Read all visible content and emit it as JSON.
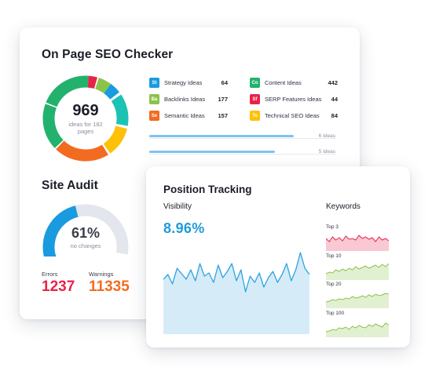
{
  "seo_checker": {
    "title": "On Page SEO Checker",
    "total_ideas": "969",
    "total_sub": "ideas for 182 pages",
    "donut_colors": [
      "#23b26d",
      "#e8234a",
      "#8bc34a",
      "#1a9be0",
      "#1cc2b3",
      "#ffc107",
      "#f26b21",
      "#23b26d"
    ],
    "ideas_left": [
      {
        "badge": "St",
        "label": "Strategy Ideas",
        "count": "64",
        "color": "#1a9be0"
      },
      {
        "badge": "Ba",
        "label": "Backlinks Ideas",
        "count": "177",
        "color": "#8bc34a"
      },
      {
        "badge": "Se",
        "label": "Semantic Ideas",
        "count": "157",
        "color": "#f26b21"
      }
    ],
    "ideas_right": [
      {
        "badge": "Co",
        "label": "Content Ideas",
        "count": "442",
        "color": "#23b26d"
      },
      {
        "badge": "Sf",
        "label": "SERP Features Ideas",
        "count": "44",
        "color": "#e8234a"
      },
      {
        "badge": "Te",
        "label": "Technical SEO Ideas",
        "count": "84",
        "color": "#ffc107"
      }
    ],
    "bar1_label": "6 Ideas",
    "bar2_label": "5 Ideas"
  },
  "site_audit": {
    "title": "Site Audit",
    "percent": "61%",
    "percent_value": 0.61,
    "sub": "no changes",
    "errors_label": "Errors",
    "errors_value": "1237",
    "warnings_label": "Warnings",
    "warnings_value": "11335",
    "gauge_color": "#1a9be0",
    "errors_color": "#e8234a",
    "warnings_color": "#f26b21"
  },
  "position_tracking": {
    "title": "Position Tracking",
    "visibility_label": "Visibility",
    "visibility_value": "8.96%",
    "keywords_label": "Keywords",
    "keywords": [
      {
        "label": "Top 3",
        "color": "#e8234a"
      },
      {
        "label": "Top 10",
        "color": "#8bc34a"
      },
      {
        "label": "Top 20",
        "color": "#8bc34a"
      },
      {
        "label": "Top 100",
        "color": "#8bc34a"
      }
    ]
  }
}
